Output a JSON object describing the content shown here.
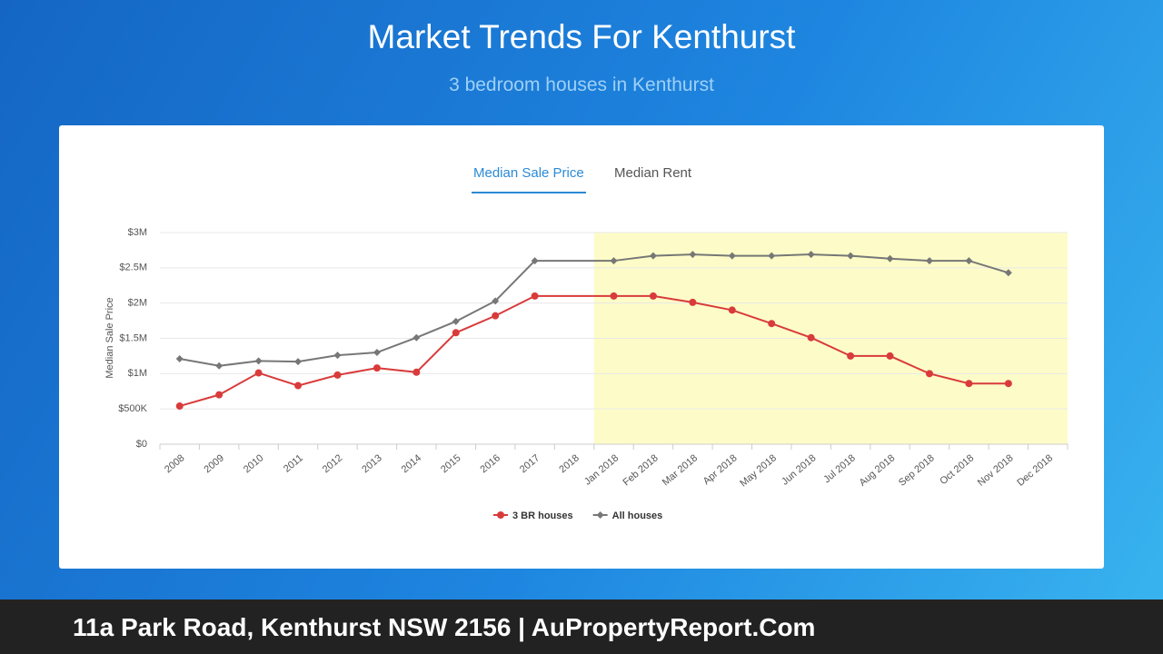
{
  "header": {
    "title": "Market Trends For Kenthurst",
    "subtitle": "3 bedroom houses in Kenthurst"
  },
  "tabs": [
    "Median Sale Price",
    "Median Rent"
  ],
  "footer": "11a Park Road, Kenthurst NSW 2156 | AuPropertyReport.Com",
  "chart_data": {
    "type": "line",
    "y_label": "Median Sale Price",
    "categories": [
      "2008",
      "2009",
      "2010",
      "2011",
      "2012",
      "2013",
      "2014",
      "2015",
      "2016",
      "2017",
      "2018",
      "Jan 2018",
      "Feb 2018",
      "Mar 2018",
      "Apr 2018",
      "May 2018",
      "Jun 2018",
      "Jul 2018",
      "Aug 2018",
      "Sep 2018",
      "Oct 2018",
      "Nov 2018",
      "Dec 2018"
    ],
    "series": [
      {
        "name": "3 BR houses",
        "color": "#d93b3b",
        "marker": "circle",
        "values": [
          540000,
          700000,
          1010000,
          830000,
          980000,
          1080000,
          1020000,
          1580000,
          1820000,
          2100000,
          null,
          2100000,
          2100000,
          2010000,
          1900000,
          1710000,
          1510000,
          1250000,
          1250000,
          1000000,
          860000,
          860000,
          null
        ]
      },
      {
        "name": "All houses",
        "color": "#777777",
        "marker": "diamond",
        "values": [
          1210000,
          1110000,
          1180000,
          1170000,
          1260000,
          1300000,
          1510000,
          1740000,
          2030000,
          2600000,
          null,
          2600000,
          2670000,
          2690000,
          2670000,
          2670000,
          2690000,
          2670000,
          2630000,
          2600000,
          2600000,
          2430000,
          null
        ]
      }
    ],
    "ylim": [
      0,
      3000000
    ],
    "yticks": [
      {
        "value": 0,
        "label": "$0"
      },
      {
        "value": 500000,
        "label": "$500K"
      },
      {
        "value": 1000000,
        "label": "$1M"
      },
      {
        "value": 1500000,
        "label": "$1.5M"
      },
      {
        "value": 2000000,
        "label": "$2M"
      },
      {
        "value": 2500000,
        "label": "$2.5M"
      },
      {
        "value": 3000000,
        "label": "$3M"
      }
    ],
    "grid": true,
    "highlight": {
      "from": "Jan 2018",
      "to": "Dec 2018",
      "color": "#fdfcc8"
    },
    "legend": "bottom"
  }
}
